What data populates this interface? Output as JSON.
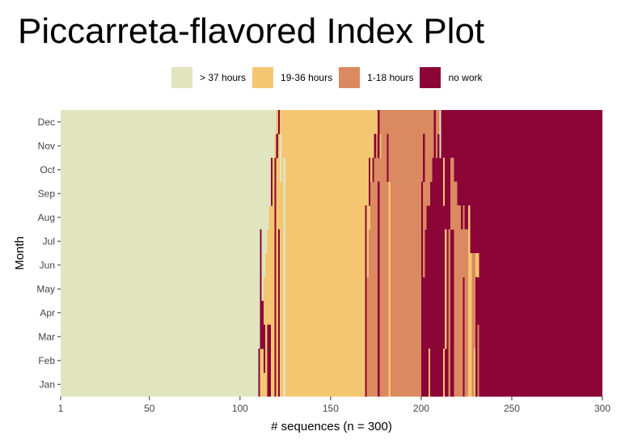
{
  "chart_data": {
    "type": "heatmap",
    "subtype": "sequence index plot",
    "title": "Piccarreta-flavored Index Plot",
    "xlabel": "# sequences (n = 300)",
    "ylabel": "Month",
    "xlim": [
      1,
      300
    ],
    "x_ticks": [
      1,
      50,
      100,
      150,
      200,
      250,
      300
    ],
    "months": [
      "Jan",
      "Feb",
      "Mar",
      "Apr",
      "May",
      "Jun",
      "Jul",
      "Aug",
      "Sep",
      "Oct",
      "Nov",
      "Dec"
    ],
    "legend_position": "top",
    "grid": false,
    "states": [
      {
        "key": "s1",
        "label": "> 37 hours",
        "color": "#E0E5C0"
      },
      {
        "key": "s2",
        "label": "19-36 hours",
        "color": "#F5C671"
      },
      {
        "key": "s3",
        "label": "1-18 hours",
        "color": "#DB8960"
      },
      {
        "key": "s4",
        "label": "no work",
        "color": "#8B0536"
      }
    ],
    "base_state_boundaries": {
      "description": "sequence index at which the dominant state changes, per month Jan..Dec",
      "s1_to_s2": [
        111,
        111,
        112,
        113,
        113,
        114,
        115,
        116,
        117,
        118,
        119,
        120
      ],
      "s2_to_s3": [
        170,
        170,
        170,
        170,
        170,
        171,
        171,
        172,
        172,
        173,
        174,
        177
      ],
      "s3_to_s4": [
        200,
        200,
        200,
        201,
        201,
        202,
        202,
        203,
        205,
        207,
        209,
        211
      ]
    },
    "exceptions": [
      {
        "seq": [
          110,
          111
        ],
        "months": [
          "Jan",
          "Feb"
        ],
        "state": "no work"
      },
      {
        "seq": [
          111,
          112
        ],
        "months": [
          "Mar",
          "Apr",
          "May",
          "Jun",
          "Jul"
        ],
        "state": "no work"
      },
      {
        "seq": [
          112,
          113
        ],
        "months": [
          "Mar",
          "Apr"
        ],
        "state": "no work"
      },
      {
        "seq": [
          113,
          114
        ],
        "months": [
          "Feb",
          "Mar"
        ],
        "state": "no work"
      },
      {
        "seq": [
          115,
          117
        ],
        "months": [
          "Jan",
          "Feb",
          "Mar"
        ],
        "state": "no work"
      },
      {
        "seq": [
          117,
          118
        ],
        "months": [
          "Sep",
          "Oct"
        ],
        "state": "no work"
      },
      {
        "seq": [
          119,
          120
        ],
        "months": [
          "Jan",
          "Feb",
          "Mar",
          "Apr",
          "May",
          "Jun",
          "Jul",
          "Aug",
          "Sep",
          "Oct"
        ],
        "state": "no work"
      },
      {
        "seq": [
          120,
          121
        ],
        "months": [
          "Nov"
        ],
        "state": "no work"
      },
      {
        "seq": [
          121,
          122
        ],
        "months": [
          "Dec"
        ],
        "state": "no work"
      },
      {
        "seq": [
          121,
          122
        ],
        "months": [
          "Jan",
          "Feb",
          "Mar",
          "Apr",
          "May",
          "Jun",
          "Jul"
        ],
        "state": "no work"
      },
      {
        "seq": [
          122,
          123
        ],
        "months": [
          "Oct",
          "Nov"
        ],
        "state": "> 37 hours"
      },
      {
        "seq": [
          124,
          125
        ],
        "months": [
          "Jan",
          "Feb",
          "Mar",
          "Apr",
          "May",
          "Jun",
          "Jul",
          "Aug",
          "Sep",
          "Oct"
        ],
        "state": "> 37 hours"
      },
      {
        "seq": [
          169,
          170
        ],
        "months": [
          "Jan",
          "Feb",
          "Mar",
          "Apr",
          "May",
          "Jun",
          "Jul",
          "Aug"
        ],
        "state": "no work"
      },
      {
        "seq": [
          171,
          172
        ],
        "months": [
          "Sep",
          "Oct"
        ],
        "state": "no work"
      },
      {
        "seq": [
          173,
          174
        ],
        "months": [
          "Oct"
        ],
        "state": "no work"
      },
      {
        "seq": [
          174,
          175
        ],
        "months": [
          "Nov"
        ],
        "state": "no work"
      },
      {
        "seq": [
          176,
          177
        ],
        "months": [
          "Nov",
          "Dec"
        ],
        "state": "no work"
      },
      {
        "seq": [
          176,
          177
        ],
        "months": [
          "Jan",
          "Feb",
          "Mar",
          "Apr",
          "May",
          "Jun",
          "Jul",
          "Aug",
          "Sep"
        ],
        "state": "no work"
      },
      {
        "seq": [
          177,
          178
        ],
        "months": [
          "Nov"
        ],
        "state": "19-36 hours"
      },
      {
        "seq": [
          179,
          180
        ],
        "months": [
          "Sep",
          "Oct"
        ],
        "state": "1-18 hours"
      },
      {
        "seq": [
          181,
          182
        ],
        "months": [
          "Oct",
          "Nov"
        ],
        "state": "no work"
      },
      {
        "seq": [
          182,
          183
        ],
        "months": [
          "Jan",
          "Feb",
          "Mar",
          "Apr",
          "May",
          "Jun",
          "Jul",
          "Aug",
          "Sep"
        ],
        "state": "19-36 hours"
      },
      {
        "seq": [
          200,
          201
        ],
        "months": [
          "Jan",
          "Feb",
          "Mar",
          "Apr",
          "May",
          "Jun",
          "Jul",
          "Aug",
          "Sep"
        ],
        "state": "no work"
      },
      {
        "seq": [
          201,
          202
        ],
        "months": [
          "Oct",
          "Nov"
        ],
        "state": "no work"
      },
      {
        "seq": [
          203,
          204
        ],
        "months": [
          "Jan",
          "Feb",
          "Mar",
          "Apr",
          "May",
          "Jun",
          "Jul"
        ],
        "state": "no work"
      },
      {
        "seq": [
          204,
          205
        ],
        "months": [
          "Jan",
          "Feb"
        ],
        "state": "19-36 hours"
      },
      {
        "seq": [
          205,
          206
        ],
        "months": [
          "Jan",
          "Feb",
          "Mar",
          "Apr"
        ],
        "state": "no work"
      },
      {
        "seq": [
          206,
          207
        ],
        "months": [
          "Jan",
          "Feb",
          "Mar",
          "Apr",
          "May",
          "Jun",
          "Jul",
          "Aug",
          "Sep",
          "Oct"
        ],
        "state": "no work"
      },
      {
        "seq": [
          207,
          208
        ],
        "months": [
          "Nov",
          "Dec"
        ],
        "state": "no work"
      },
      {
        "seq": [
          208,
          209
        ],
        "months": [
          "Jan",
          "Feb",
          "Mar"
        ],
        "state": "no work"
      },
      {
        "seq": [
          209,
          211
        ],
        "months": [
          "Jan",
          "Feb",
          "Mar",
          "Apr",
          "May"
        ],
        "state": "no work"
      },
      {
        "seq": [
          210,
          211
        ],
        "months": [
          "Nov",
          "Dec"
        ],
        "state": "> 37 hours"
      },
      {
        "seq": [
          211,
          212
        ],
        "months": [
          "Jan",
          "Feb",
          "Mar",
          "Apr",
          "May",
          "Jun",
          "Jul",
          "Aug"
        ],
        "state": "no work"
      },
      {
        "seq": [
          212,
          213
        ],
        "months": [
          "Sep",
          "Oct"
        ],
        "state": "19-36 hours"
      },
      {
        "seq": [
          212,
          213
        ],
        "months": [
          "Jan",
          "Feb"
        ],
        "state": "19-36 hours"
      },
      {
        "seq": [
          213,
          214
        ],
        "months": [
          "Mar",
          "Apr",
          "May",
          "Jun",
          "Jul"
        ],
        "state": "19-36 hours"
      },
      {
        "seq": [
          214,
          215
        ],
        "months": [
          "Jan",
          "Feb",
          "Mar",
          "Apr",
          "May",
          "Jun"
        ],
        "state": "no work"
      },
      {
        "seq": [
          215,
          216
        ],
        "months": [
          "Jan",
          "Feb",
          "Mar",
          "Apr",
          "May",
          "Jun",
          "Jul"
        ],
        "state": "1-18 hours"
      },
      {
        "seq": [
          216,
          217
        ],
        "months": [
          "Aug",
          "Sep",
          "Oct"
        ],
        "state": "1-18 hours"
      },
      {
        "seq": [
          217,
          218
        ],
        "months": [
          "Aug",
          "Sep",
          "Oct"
        ],
        "state": "1-18 hours"
      },
      {
        "seq": [
          217,
          218
        ],
        "months": [
          "Jan",
          "Feb",
          "Mar",
          "Apr",
          "May",
          "Jun"
        ],
        "state": "no work"
      },
      {
        "seq": [
          218,
          220
        ],
        "months": [
          "Jan",
          "Feb",
          "Mar",
          "Apr",
          "May",
          "Jun",
          "Jul",
          "Aug",
          "Sep"
        ],
        "state": "1-18 hours"
      },
      {
        "seq": [
          220,
          221
        ],
        "months": [
          "Jan",
          "Feb",
          "Mar",
          "Apr",
          "May",
          "Jun",
          "Jul",
          "Aug"
        ],
        "state": "1-18 hours"
      },
      {
        "seq": [
          221,
          222
        ],
        "months": [
          "Jan",
          "Feb",
          "Mar",
          "Apr",
          "May",
          "Jun",
          "Jul",
          "Aug"
        ],
        "state": "1-18 hours"
      },
      {
        "seq": [
          222,
          223
        ],
        "months": [
          "Jan",
          "Feb",
          "Mar",
          "Apr",
          "May",
          "Jun",
          "Jul"
        ],
        "state": "1-18 hours"
      },
      {
        "seq": [
          223,
          224
        ],
        "months": [
          "Jun",
          "Jul",
          "Aug"
        ],
        "state": "1-18 hours"
      },
      {
        "seq": [
          224,
          225
        ],
        "months": [
          "Jan",
          "Feb",
          "Mar",
          "Apr",
          "May",
          "Jun",
          "Jul"
        ],
        "state": "1-18 hours"
      },
      {
        "seq": [
          225,
          226
        ],
        "months": [
          "Jan",
          "Feb",
          "Mar",
          "Apr",
          "May",
          "Jun",
          "Jul"
        ],
        "state": "1-18 hours"
      },
      {
        "seq": [
          226,
          227
        ],
        "months": [
          "Jan",
          "Feb",
          "Mar",
          "Apr",
          "May",
          "Jun",
          "Jul",
          "Aug"
        ],
        "state": "19-36 hours"
      },
      {
        "seq": [
          227,
          228
        ],
        "months": [
          "Jan",
          "Feb",
          "Mar",
          "Apr",
          "May",
          "Jun"
        ],
        "state": "19-36 hours"
      },
      {
        "seq": [
          228,
          230
        ],
        "months": [
          "Jan",
          "Feb",
          "Mar",
          "Apr",
          "May",
          "Jun"
        ],
        "state": "1-18 hours"
      },
      {
        "seq": [
          229,
          230
        ],
        "months": [
          "Jan",
          "Feb"
        ],
        "state": "19-36 hours"
      },
      {
        "seq": [
          230,
          232
        ],
        "months": [
          "Jun"
        ],
        "state": "19-36 hours"
      },
      {
        "seq": [
          230,
          231
        ],
        "months": [
          "Jan",
          "Feb",
          "Mar",
          "Apr",
          "May"
        ],
        "state": "no work"
      },
      {
        "seq": [
          231,
          232
        ],
        "months": [
          "Jan",
          "Feb",
          "Mar"
        ],
        "state": "1-18 hours"
      }
    ]
  }
}
